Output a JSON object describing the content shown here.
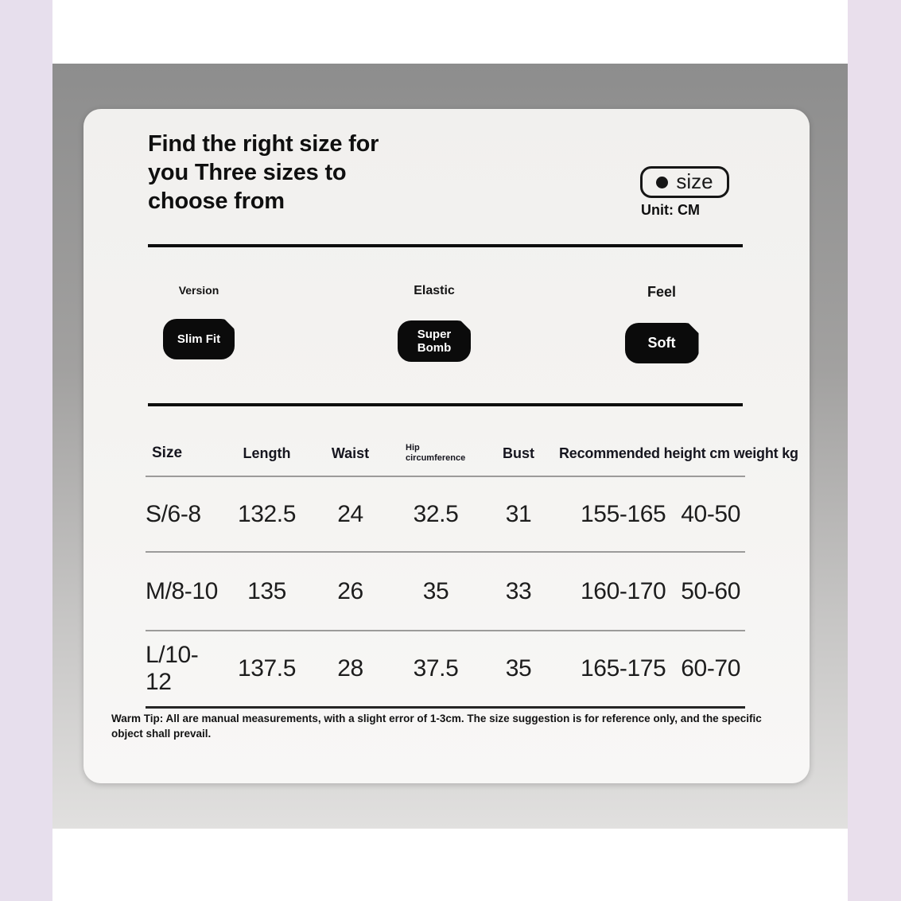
{
  "header": {
    "title_lines": [
      "Find the right size for",
      "you Three sizes to",
      "choose from"
    ],
    "badge_label": "size",
    "unit_label": "Unit: CM"
  },
  "attributes": [
    {
      "label": "Version",
      "value": "Slim Fit"
    },
    {
      "label": "Elastic",
      "value": "Super Bomb"
    },
    {
      "label": "Feel",
      "value": "Soft"
    }
  ],
  "table": {
    "columns": [
      "Size",
      "Length",
      "Waist",
      "Hip circumference",
      "Bust",
      "Recommended height cm weight kg"
    ],
    "rows": [
      [
        "S/6-8",
        "132.5",
        "24",
        "32.5",
        "31",
        "155-165 40-50"
      ],
      [
        "M/8-10",
        "135",
        "26",
        "35",
        "33",
        "160-170 50-60"
      ],
      [
        "L/10-12",
        "137.5",
        "28",
        "37.5",
        "35",
        "165-175 60-70"
      ]
    ]
  },
  "footer": {
    "warm_tip": "Warm Tip: All are manual measurements, with a slight error of 1-3cm. The size suggestion is for reference only, and the specific object shall prevail."
  },
  "colors": {
    "accent_black": "#0d0d0d",
    "lavender_strip": "#e7dfed",
    "backdrop_gray_top": "#8d8d8d",
    "backdrop_gray_bottom": "#e1e0df",
    "card_background": "#f2f1ef",
    "pill_background": "#0b0b0b",
    "pill_text": "#ffffff",
    "divider_gray": "#9c9b9a"
  }
}
